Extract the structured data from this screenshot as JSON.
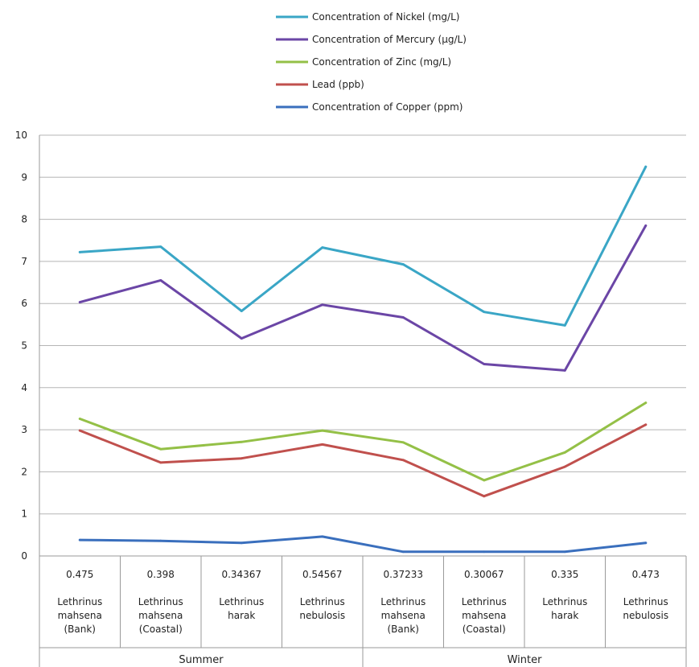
{
  "chart_data": {
    "type": "line",
    "title": "",
    "xlabel": "",
    "ylabel": "",
    "ylim": [
      0,
      10
    ],
    "yticks": [
      "0",
      "1",
      "2",
      "3",
      "4",
      "5",
      "6",
      "7",
      "8",
      "9",
      "10"
    ],
    "grid": true,
    "legend_position": "top",
    "categories": [
      {
        "value_label": "0.475",
        "species": [
          "Lethrinus",
          "mahsena",
          "(Bank)"
        ],
        "season": "Summer"
      },
      {
        "value_label": "0.398",
        "species": [
          "Lethrinus",
          "mahsena",
          "(Coastal)"
        ],
        "season": "Summer"
      },
      {
        "value_label": "0.34367",
        "species": [
          "Lethrinus",
          "harak"
        ],
        "season": "Summer"
      },
      {
        "value_label": "0.54567",
        "species": [
          "Lethrinus",
          "nebulosis"
        ],
        "season": "Summer"
      },
      {
        "value_label": "0.37233",
        "species": [
          "Lethrinus",
          "mahsena",
          "(Bank)"
        ],
        "season": "Winter"
      },
      {
        "value_label": "0.30067",
        "species": [
          "Lethrinus",
          "mahsena",
          "(Coastal)"
        ],
        "season": "Winter"
      },
      {
        "value_label": "0.335",
        "species": [
          "Lethrinus",
          "harak"
        ],
        "season": "Winter"
      },
      {
        "value_label": "0.473",
        "species": [
          "Lethrinus",
          "nebulosis"
        ],
        "season": "Winter"
      }
    ],
    "groups": [
      {
        "label": "Summer",
        "span": [
          0,
          3
        ]
      },
      {
        "label": "Winter",
        "span": [
          4,
          7
        ]
      }
    ],
    "series": [
      {
        "name": "Concentration of Nickel (mg/L)",
        "color": "#3aa6c6",
        "values": [
          7.22,
          7.35,
          5.82,
          7.33,
          6.93,
          5.8,
          5.48,
          9.25
        ]
      },
      {
        "name": "Concentration of Mercury (µg/L)",
        "color": "#6b46a6",
        "values": [
          6.03,
          6.55,
          5.17,
          5.97,
          5.67,
          4.56,
          4.41,
          7.85
        ]
      },
      {
        "name": "Concentration of Zinc (mg/L)",
        "color": "#94c047",
        "values": [
          3.26,
          2.54,
          2.71,
          2.98,
          2.7,
          1.8,
          2.46,
          3.64
        ]
      },
      {
        "name": "Lead (ppb)",
        "color": "#c0504d",
        "values": [
          2.98,
          2.22,
          2.32,
          2.65,
          2.28,
          1.42,
          2.12,
          3.12
        ]
      },
      {
        "name": "Concentration of Copper (ppm)",
        "color": "#3a6fbd",
        "values": [
          0.38,
          0.36,
          0.31,
          0.46,
          0.1,
          0.1,
          0.1,
          0.31
        ]
      }
    ]
  }
}
